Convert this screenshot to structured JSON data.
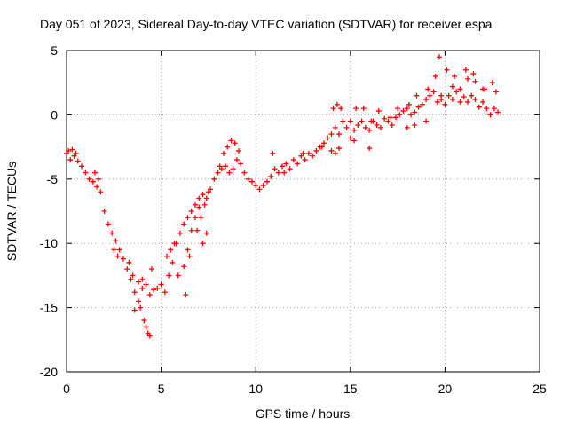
{
  "chart_data": {
    "type": "scatter",
    "title": "Day 051 of 2023, Sidereal Day-to-day VTEC variation (SDTVAR) for receiver espa",
    "xlabel": "GPS time / hours",
    "ylabel": "SDTVAR / TECUs",
    "xlim": [
      0,
      25
    ],
    "ylim": [
      -20,
      5
    ],
    "xticks": [
      0,
      5,
      10,
      15,
      20,
      25
    ],
    "yticks": [
      -20,
      -15,
      -10,
      -5,
      0,
      5
    ],
    "xtick_labels": [
      "0",
      "5",
      "10",
      "15",
      "20",
      "25"
    ],
    "ytick_labels": [
      "-20",
      "-15",
      "-10",
      "-5",
      "0",
      "5"
    ],
    "grid": true,
    "marker": "+",
    "series": [
      {
        "name": "SDTVAR",
        "color": "#ff0000",
        "x": [
          0.0,
          0.2,
          0.4,
          0.6,
          0.8,
          1.0,
          1.2,
          1.4,
          1.6,
          1.8,
          2.0,
          2.2,
          2.4,
          2.6,
          2.8,
          3.0,
          3.2,
          3.4,
          3.6,
          3.8,
          4.0,
          4.2,
          4.4,
          4.6,
          4.8,
          5.0,
          5.2,
          5.4,
          5.6,
          5.8,
          6.0,
          6.2,
          6.4,
          6.6,
          6.8,
          7.0,
          7.2,
          7.4,
          7.6,
          7.8,
          8.0,
          8.2,
          8.4,
          8.6,
          8.8,
          9.0,
          9.2,
          9.4,
          9.6,
          9.8,
          10.0,
          10.2,
          10.4,
          10.6,
          10.8,
          11.0,
          11.2,
          11.4,
          11.6,
          11.8,
          12.0,
          12.2,
          12.4,
          12.6,
          12.8,
          13.0,
          13.2,
          13.4,
          13.6,
          13.8,
          14.0,
          14.2,
          14.4,
          14.6,
          14.8,
          15.0,
          15.2,
          15.4,
          15.6,
          15.8,
          16.0,
          16.2,
          16.4,
          16.6,
          16.8,
          17.0,
          17.2,
          17.4,
          17.6,
          17.8,
          18.0,
          18.2,
          18.4,
          18.6,
          18.8,
          19.0,
          19.2,
          19.4,
          19.6,
          19.8,
          20.0,
          20.2,
          20.4,
          20.6,
          20.8,
          21.0,
          21.2,
          21.4,
          21.6,
          21.8,
          22.0,
          22.2,
          22.4,
          22.6,
          22.8,
          0.1,
          0.3,
          0.5,
          1.5,
          1.7,
          2.5,
          2.7,
          3.3,
          3.5,
          3.9,
          4.1,
          4.3,
          4.5,
          5.3,
          5.5,
          5.7,
          5.9,
          6.3,
          6.5,
          6.9,
          7.1,
          7.3,
          7.5,
          8.1,
          8.3,
          8.5,
          8.7,
          8.9,
          9.1,
          10.9,
          11.5,
          12.5,
          13.5,
          14.1,
          14.3,
          14.5,
          15.3,
          15.7,
          16.1,
          16.5,
          17.1,
          17.5,
          18.1,
          18.5,
          19.1,
          19.5,
          19.7,
          20.1,
          20.5,
          21.1,
          21.5,
          22.1,
          22.5,
          22.7,
          3.6,
          3.8,
          4.0,
          4.2,
          4.4,
          6.2,
          6.4,
          6.6,
          6.8,
          7.0,
          7.2,
          7.4,
          14.0,
          14.2,
          14.4,
          15.0,
          15.2,
          16.0,
          18.0,
          18.4,
          19.0,
          19.8,
          20.4,
          20.8,
          21.2,
          21.6,
          22.0,
          22.4
        ],
        "y": [
          -3.0,
          -3.5,
          -3.2,
          -3.6,
          -4.0,
          -4.5,
          -5.0,
          -5.2,
          -5.6,
          -6.0,
          -7.5,
          -8.5,
          -9.2,
          -9.8,
          -10.5,
          -11.2,
          -12.0,
          -12.8,
          -13.8,
          -14.5,
          -13.5,
          -13.2,
          -14.0,
          -13.6,
          -13.5,
          -13.2,
          -13.8,
          -12.5,
          -11.5,
          -10.0,
          -9.2,
          -8.5,
          -8.0,
          -7.5,
          -7.0,
          -6.5,
          -6.2,
          -6.5,
          -5.8,
          -5.0,
          -4.5,
          -4.2,
          -4.0,
          -4.5,
          -4.2,
          -3.5,
          -3.8,
          -4.5,
          -5.0,
          -5.2,
          -5.5,
          -5.8,
          -5.5,
          -5.2,
          -4.8,
          -4.2,
          -4.5,
          -4.0,
          -3.8,
          -4.2,
          -3.5,
          -3.8,
          -3.2,
          -3.5,
          -3.0,
          -3.2,
          -2.8,
          -2.5,
          -2.2,
          -1.8,
          -1.5,
          -1.0,
          -1.5,
          -0.5,
          -1.0,
          -0.5,
          -1.2,
          -0.8,
          -0.5,
          -1.0,
          -1.2,
          -0.5,
          -0.8,
          -1.0,
          -0.3,
          -0.5,
          -0.8,
          -0.2,
          0.0,
          0.3,
          0.5,
          0.0,
          0.2,
          0.6,
          0.8,
          1.2,
          1.5,
          1.8,
          1.0,
          1.2,
          0.8,
          1.5,
          1.2,
          1.8,
          1.0,
          1.4,
          1.0,
          1.5,
          1.2,
          0.6,
          1.0,
          0.5,
          0.0,
          0.5,
          0.2,
          -2.8,
          -2.7,
          -3.0,
          -4.5,
          -5.0,
          -10.5,
          -11.0,
          -11.5,
          -12.5,
          -15.0,
          -16.0,
          -17.0,
          -12.0,
          -11.0,
          -10.5,
          -10.0,
          -12.5,
          -14.0,
          -11.0,
          -9.0,
          -8.0,
          -7.0,
          -6.0,
          -4.0,
          -3.0,
          -2.5,
          -2.0,
          -2.2,
          -2.8,
          -3.0,
          -4.5,
          -3.0,
          -2.5,
          0.5,
          0.8,
          0.5,
          0.5,
          0.5,
          -0.5,
          0.3,
          -0.2,
          0.5,
          0.8,
          1.5,
          2.0,
          3.0,
          4.5,
          3.5,
          3.0,
          3.5,
          3.2,
          2.0,
          2.5,
          1.8,
          -15.2,
          -13.0,
          -12.8,
          -16.5,
          -17.2,
          -11.8,
          -10.5,
          -9.0,
          -8.0,
          -7.2,
          -10.0,
          -9.2,
          -2.8,
          -3.0,
          -2.6,
          -1.8,
          -2.0,
          -2.6,
          -1.0,
          -0.8,
          -0.5,
          1.5,
          2.2,
          2.0,
          2.8,
          2.6,
          2.0,
          0.0
        ]
      }
    ]
  }
}
